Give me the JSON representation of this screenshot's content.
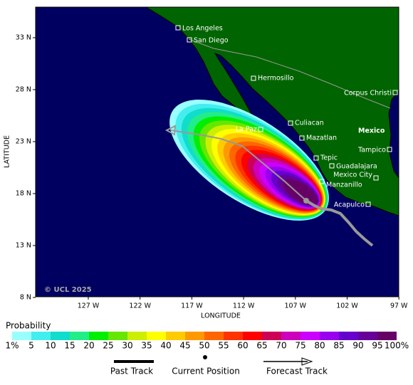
{
  "map": {
    "y_axis_label": "LATITUDE",
    "x_axis_label": "LONGITUDE",
    "latitude_ticks": [
      "33 N",
      "28 N",
      "23 N",
      "18 N",
      "13 N",
      "8 N"
    ],
    "longitude_ticks": [
      "127 W",
      "122 W",
      "117 W",
      "112 W",
      "107 W",
      "102 W",
      "97 W"
    ],
    "cities": [
      "Los Angeles",
      "San Diego",
      "Hermosillo",
      "Corpus Christi",
      "Culiacan",
      "La Paz",
      "Mazatlan",
      "Mexico",
      "Tampico",
      "Tepic",
      "Guadalajara",
      "Mexico City",
      "Manzanillo",
      "Acapulco"
    ],
    "copyright": "© UCL 2025"
  },
  "legend": {
    "title": "Probability",
    "labels": [
      "1%",
      "5",
      "10",
      "15",
      "20",
      "25",
      "30",
      "35",
      "40",
      "45",
      "50",
      "55",
      "60",
      "65",
      "70",
      "75",
      "80",
      "85",
      "90",
      "95",
      "100%"
    ],
    "colors": [
      "#99ffff",
      "#44eeee",
      "#11ddcc",
      "#22ee88",
      "#00ee00",
      "#66e600",
      "#ccee00",
      "#ffff00",
      "#ffcc00",
      "#ff9900",
      "#ff6600",
      "#ff3300",
      "#ff0000",
      "#cc0055",
      "#cc00bb",
      "#cc00ff",
      "#9900ee",
      "#6600cc",
      "#660099",
      "#660066"
    ],
    "past_track": "Past Track",
    "current_position": "Current Position",
    "forecast_track": "Forecast Track"
  }
}
